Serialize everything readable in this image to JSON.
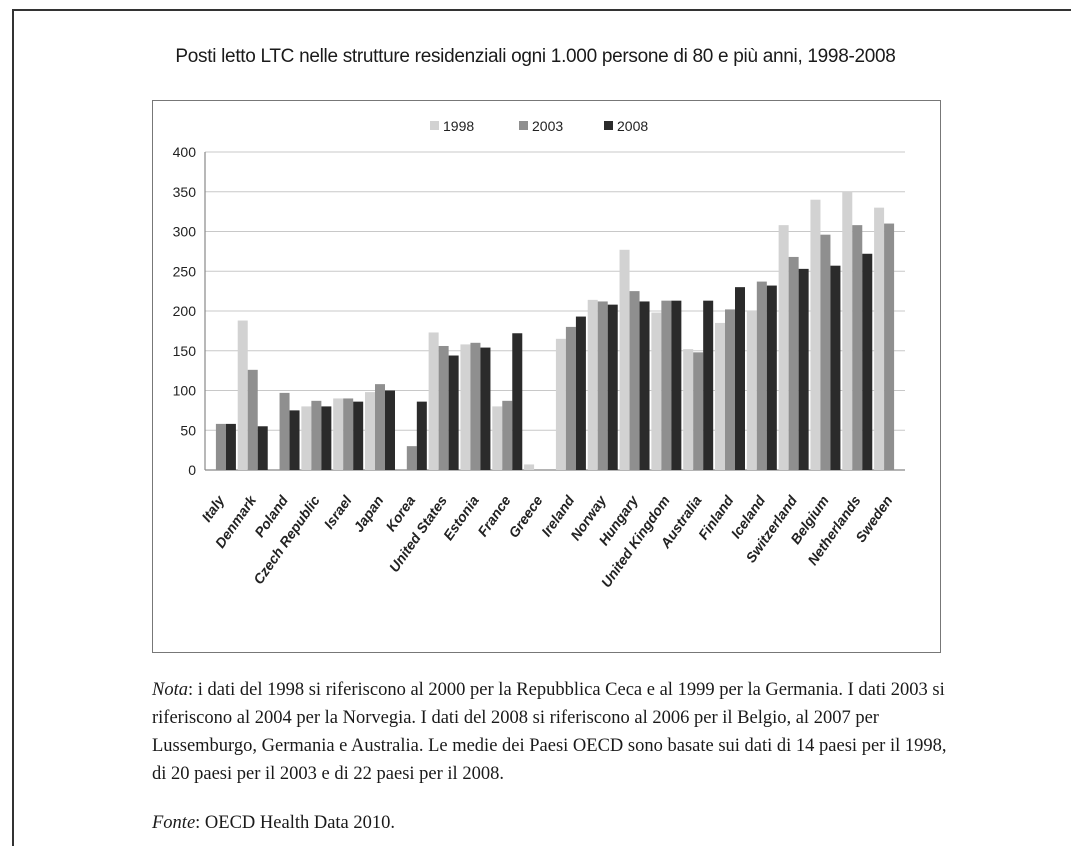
{
  "figure": {
    "note_label": "Nota",
    "note_text": ": i dati del 1998 si riferiscono al 2000 per la Repubblica Ceca e al 1999 per la Germania. I dati 2003 si riferiscono al 2004 per la Norvegia. I dati del 2008 si riferiscono al 2006 per il Belgio, al 2007 per Lussemburgo, Germania e Australia. Le medie dei Paesi OECD sono basate sui dati di 14 paesi per il 1998, di 20 paesi per il 2003 e di 22 paesi per il 2008.",
    "source_label": "Fonte",
    "source_text": ": OECD Health Data 2010."
  },
  "chart_data": {
    "type": "bar",
    "title": "Posti letto LTC nelle strutture residenziali ogni 1.000 persone di 80 e più anni, 1998-2008",
    "xlabel": "",
    "ylabel": "",
    "ylim": [
      0,
      400
    ],
    "yticks": [
      0,
      50,
      100,
      150,
      200,
      250,
      300,
      350,
      400
    ],
    "grid": true,
    "legend_position": "top-center",
    "categories": [
      "Italy",
      "Denmark",
      "Poland",
      "Czech Republic",
      "Israel",
      "Japan",
      "Korea",
      "United States",
      "Estonia",
      "France",
      "Greece",
      "Ireland",
      "Norway",
      "Hungary",
      "United Kingdom",
      "Australia",
      "Finland",
      "Iceland",
      "Switzerland",
      "Belgium",
      "Netherlands",
      "Sweden"
    ],
    "series": [
      {
        "name": "1998",
        "color": "#d2d2d2",
        "values": [
          null,
          188,
          null,
          80,
          90,
          98,
          null,
          173,
          158,
          80,
          7,
          165,
          214,
          277,
          198,
          152,
          185,
          200,
          308,
          340,
          350,
          330
        ]
      },
      {
        "name": "2003",
        "color": "#8f8f8f",
        "values": [
          58,
          126,
          97,
          87,
          90,
          108,
          30,
          156,
          160,
          87,
          null,
          180,
          212,
          225,
          213,
          148,
          202,
          237,
          268,
          296,
          308,
          310
        ]
      },
      {
        "name": "2008",
        "color": "#2b2b2b",
        "values": [
          58,
          55,
          75,
          80,
          86,
          100,
          86,
          144,
          154,
          172,
          null,
          193,
          208,
          212,
          213,
          213,
          230,
          232,
          253,
          257,
          272,
          null
        ]
      }
    ]
  }
}
